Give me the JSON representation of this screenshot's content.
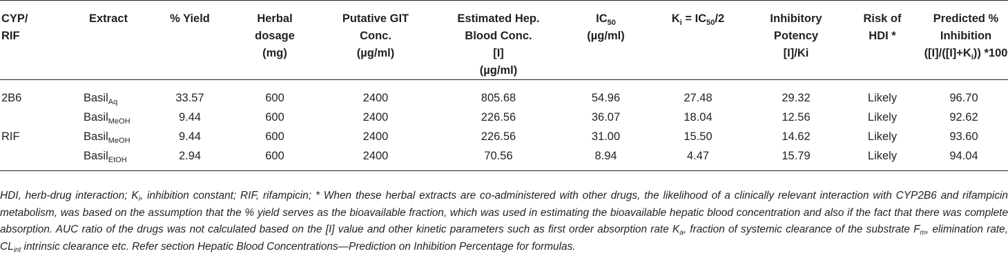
{
  "headers": {
    "cyp": [
      "CYP/",
      "RIF"
    ],
    "extract": "Extract",
    "yield": "% Yield",
    "dosage": [
      "Herbal",
      "dosage",
      "(mg)"
    ],
    "git": [
      "Putative GIT",
      "Conc.",
      "(µg/ml)"
    ],
    "hep": [
      "Estimated Hep.",
      "Blood Conc.",
      "[I]",
      "(µg/ml)"
    ],
    "ic50_main": "IC",
    "ic50_sub": "50",
    "ic50_unit": "(µg/ml)",
    "ki_k": "K",
    "ki_i": "i",
    "ki_eq": " = IC",
    "ki_50": "50",
    "ki_tail": "/2",
    "potency": [
      "Inhibitory",
      "Potency",
      "[I]/Ki"
    ],
    "risk": [
      "Risk of",
      "HDI *"
    ],
    "pred_1": "Predicted %",
    "pred_2": "Inhibition",
    "pred_3a": "([I]/([I]+K",
    "pred_3b": "i",
    "pred_3c": ")) *100"
  },
  "rows": [
    {
      "cyp": "2B6",
      "extract": "Basil",
      "sub": "Aq",
      "yield": "33.57",
      "dosage": "600",
      "git": "2400",
      "hep": "805.68",
      "ic50": "54.96",
      "ki": "27.48",
      "potency": "29.32",
      "risk": "Likely",
      "pred": "96.70"
    },
    {
      "cyp": "",
      "extract": "Basil",
      "sub": "MeOH",
      "yield": "9.44",
      "dosage": "600",
      "git": "2400",
      "hep": "226.56",
      "ic50": "36.07",
      "ki": "18.04",
      "potency": "12.56",
      "risk": "Likely",
      "pred": "92.62"
    },
    {
      "cyp": "RIF",
      "extract": "Basil",
      "sub": "MeOH",
      "yield": "9.44",
      "dosage": "600",
      "git": "2400",
      "hep": "226.56",
      "ic50": "31.00",
      "ki": "15.50",
      "potency": "14.62",
      "risk": "Likely",
      "pred": "93.60"
    },
    {
      "cyp": "",
      "extract": "Basil",
      "sub": "EtOH",
      "yield": "2.94",
      "dosage": "600",
      "git": "2400",
      "hep": "70.56",
      "ic50": "8.94",
      "ki": "4.47",
      "potency": "15.79",
      "risk": "Likely",
      "pred": "94.04"
    }
  ],
  "footnote": {
    "p1": "HDI, herb-drug interaction; K",
    "p1_sub": "i",
    "p2": ", inhibition constant; RIF, rifampicin; * When these herbal extracts are co-administered with other drugs, the likelihood of a clinically relevant interaction with CYP2B6 and rifampicin metabolism, was based on the assumption that the % yield serves as the bioavailable fraction, which was used in estimating the bioavailable hepatic blood concentration and also if the fact that there was complete absorption. AUC ratio of the drugs was not calculated based on the [I] value and other kinetic parameters such as first order absorption rate K",
    "p2_sub": "a",
    "p3": ", fraction of systemic clearance of the substrate F",
    "p3_sub": "m",
    "p4": ", elimination rate, CL",
    "p4_sub": "int",
    "p5": " intrinsic clearance etc. Refer section Hepatic Blood Concentrations—Prediction on Inhibition Percentage for formulas."
  }
}
